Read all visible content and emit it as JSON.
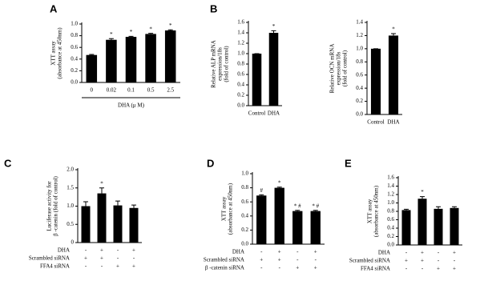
{
  "chart_data": [
    {
      "type": "bar",
      "panel": "A",
      "ylabel": [
        "XTT assay",
        "(absorbance at 450nm)"
      ],
      "xlabel": "DHA (μ M)",
      "categories": [
        "0",
        "0.02",
        "0.1",
        "0.5",
        "2.5"
      ],
      "values": [
        0.47,
        0.73,
        0.78,
        0.83,
        0.89
      ],
      "errors": [
        0.01,
        0.02,
        0.01,
        0.01,
        0.01
      ],
      "annotations": [
        null,
        "*",
        "*",
        "*",
        "*"
      ],
      "color": "#000000",
      "ylim": [
        0,
        1
      ],
      "yticks": [
        {
          "value": 0,
          "label": "0.0"
        },
        0.2,
        0.4,
        0.6,
        0.8,
        {
          "value": 1,
          "label": "1.0"
        }
      ]
    },
    {
      "type": "bar",
      "panel": "B",
      "ylabel": [
        "Relative ALP mRNA",
        "expression/18s",
        "(fold of control)"
      ],
      "categories": [
        "Control",
        "DHA"
      ],
      "values": [
        1.0,
        1.4
      ],
      "errors": [
        0.0,
        0.04
      ],
      "annotations": [
        null,
        "*"
      ],
      "color": "#000000",
      "ylim": [
        0,
        1.6
      ],
      "yticks": [
        {
          "value": 0,
          "label": "0.0"
        },
        0.2,
        0.4,
        0.6,
        0.8,
        {
          "value": 1,
          "label": "1.0"
        },
        1.2,
        1.4,
        1.6
      ]
    },
    {
      "type": "bar",
      "ylabel": [
        "Relative OCN mRNA",
        "expression/18s",
        "(fold of control)"
      ],
      "categories": [
        "Control",
        "DHA"
      ],
      "values": [
        1.0,
        1.2
      ],
      "errors": [
        0.0,
        0.03
      ],
      "annotations": [
        null,
        "*"
      ],
      "color": "#000000",
      "ylim": [
        0,
        1.4
      ],
      "yticks": [
        {
          "value": 0,
          "label": "0.0"
        },
        0.2,
        0.4,
        0.6,
        0.8,
        {
          "value": 1,
          "label": "1.0"
        },
        1.2,
        1.4
      ]
    },
    {
      "type": "bar",
      "panel": "C",
      "ylabel": [
        "Luciferase activity for",
        "β -catenin (fold of control)"
      ],
      "values": [
        1.0,
        1.35,
        1.02,
        0.95
      ],
      "errors": [
        0.12,
        0.15,
        0.12,
        0.08
      ],
      "annotations": [
        null,
        "*",
        null,
        null
      ],
      "color": "#000000",
      "treatments": [
        {
          "name": "DHA",
          "signs": [
            "-",
            "+",
            "-",
            "+"
          ]
        },
        {
          "name": "Scrambled siRNA",
          "signs": [
            "+",
            "+",
            "-",
            "-"
          ]
        },
        {
          "name": "FFA4 siRNA",
          "signs": [
            "-",
            "-",
            "+",
            "+"
          ]
        }
      ],
      "ylim": [
        0,
        2
      ],
      "yticks": [
        0,
        0.5,
        {
          "value": 1,
          "label": "1.0"
        },
        1.5,
        {
          "value": 2,
          "label": "2.0"
        }
      ]
    },
    {
      "type": "bar",
      "panel": "D",
      "ylabel": [
        "XTT assay",
        "(absorbance at 450nm)"
      ],
      "values": [
        0.69,
        0.8,
        0.47,
        0.47
      ],
      "errors": [
        0.01,
        0.01,
        0.01,
        0.01
      ],
      "annotations": [
        "#",
        "*",
        "* #",
        "* #"
      ],
      "color": "#000000",
      "treatments": [
        {
          "name": "DHA",
          "signs": [
            "-",
            "+",
            "-",
            "+"
          ]
        },
        {
          "name": "Scrambled siRNA",
          "signs": [
            "+",
            "+",
            "-",
            "-"
          ]
        },
        {
          "name": "β -catenin siRNA",
          "signs": [
            "-",
            "-",
            "+",
            "+"
          ]
        }
      ],
      "ylim": [
        0,
        1
      ],
      "yticks": [
        {
          "value": 0,
          "label": "0.0"
        },
        0.2,
        0.4,
        0.6,
        0.8,
        {
          "value": 1,
          "label": "1.0"
        }
      ]
    },
    {
      "type": "bar",
      "panel": "E",
      "ylabel": [
        "XTT assay",
        "(absorbance at 450nm)"
      ],
      "values": [
        0.83,
        1.1,
        0.86,
        0.88
      ],
      "errors": [
        0.02,
        0.05,
        0.05,
        0.03
      ],
      "annotations": [
        null,
        "*",
        null,
        null
      ],
      "color": "#000000",
      "treatments": [
        {
          "name": "DHA",
          "signs": [
            "-",
            "+",
            "-",
            "+"
          ]
        },
        {
          "name": "Scrambled siRNA",
          "signs": [
            "+",
            "+",
            "-",
            "-"
          ]
        },
        {
          "name": "FFA4 siRNA",
          "signs": [
            "-",
            "-",
            "+",
            "+"
          ]
        }
      ],
      "ylim": [
        0,
        1.6
      ],
      "yticks": [
        {
          "value": 0,
          "label": "0.0"
        },
        0.2,
        0.4,
        0.6,
        0.8,
        {
          "value": 1,
          "label": "1.0"
        },
        1.2,
        1.4,
        1.6
      ]
    }
  ]
}
